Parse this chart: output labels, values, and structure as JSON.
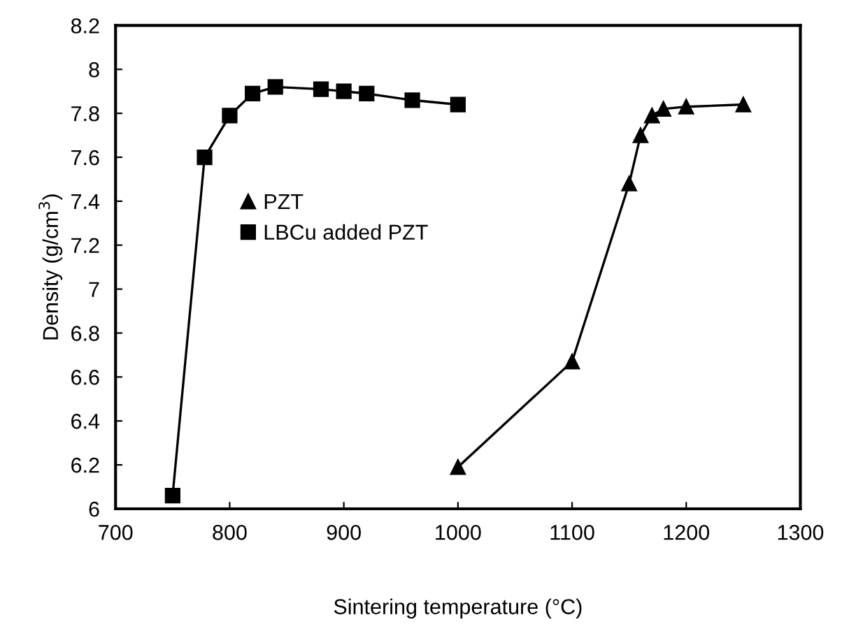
{
  "chart_data": {
    "type": "line",
    "xlabel": "Sintering temperature (°C)",
    "ylabel": "Density (g/cm$^{3}$)",
    "series": [
      {
        "name": "PZT",
        "color": "#000000",
        "marker": "triangle",
        "x": [
          1000,
          1100,
          1150,
          1160,
          1170,
          1180,
          1200,
          1250
        ],
        "values": [
          6.19,
          6.67,
          7.48,
          7.7,
          7.79,
          7.82,
          7.83,
          7.84
        ]
      },
      {
        "name": "LBCu added PZT",
        "color": "#000000",
        "marker": "square",
        "x": [
          750,
          778,
          800,
          820,
          840,
          880,
          900,
          920,
          960,
          1000
        ],
        "values": [
          6.06,
          7.6,
          7.79,
          7.89,
          7.92,
          7.91,
          7.9,
          7.89,
          7.86,
          7.84
        ]
      }
    ],
    "xlim": [
      700,
      1300
    ],
    "xticks": [
      700,
      800,
      900,
      1000,
      1100,
      1200,
      1300
    ],
    "ylim": [
      6,
      8.2
    ],
    "yticks": [
      6,
      6.2,
      6.4,
      6.6,
      6.8,
      7,
      7.2,
      7.4,
      7.6,
      7.8,
      8,
      8.2
    ],
    "grid": false,
    "legend": "center left",
    "line_style": "solid"
  }
}
